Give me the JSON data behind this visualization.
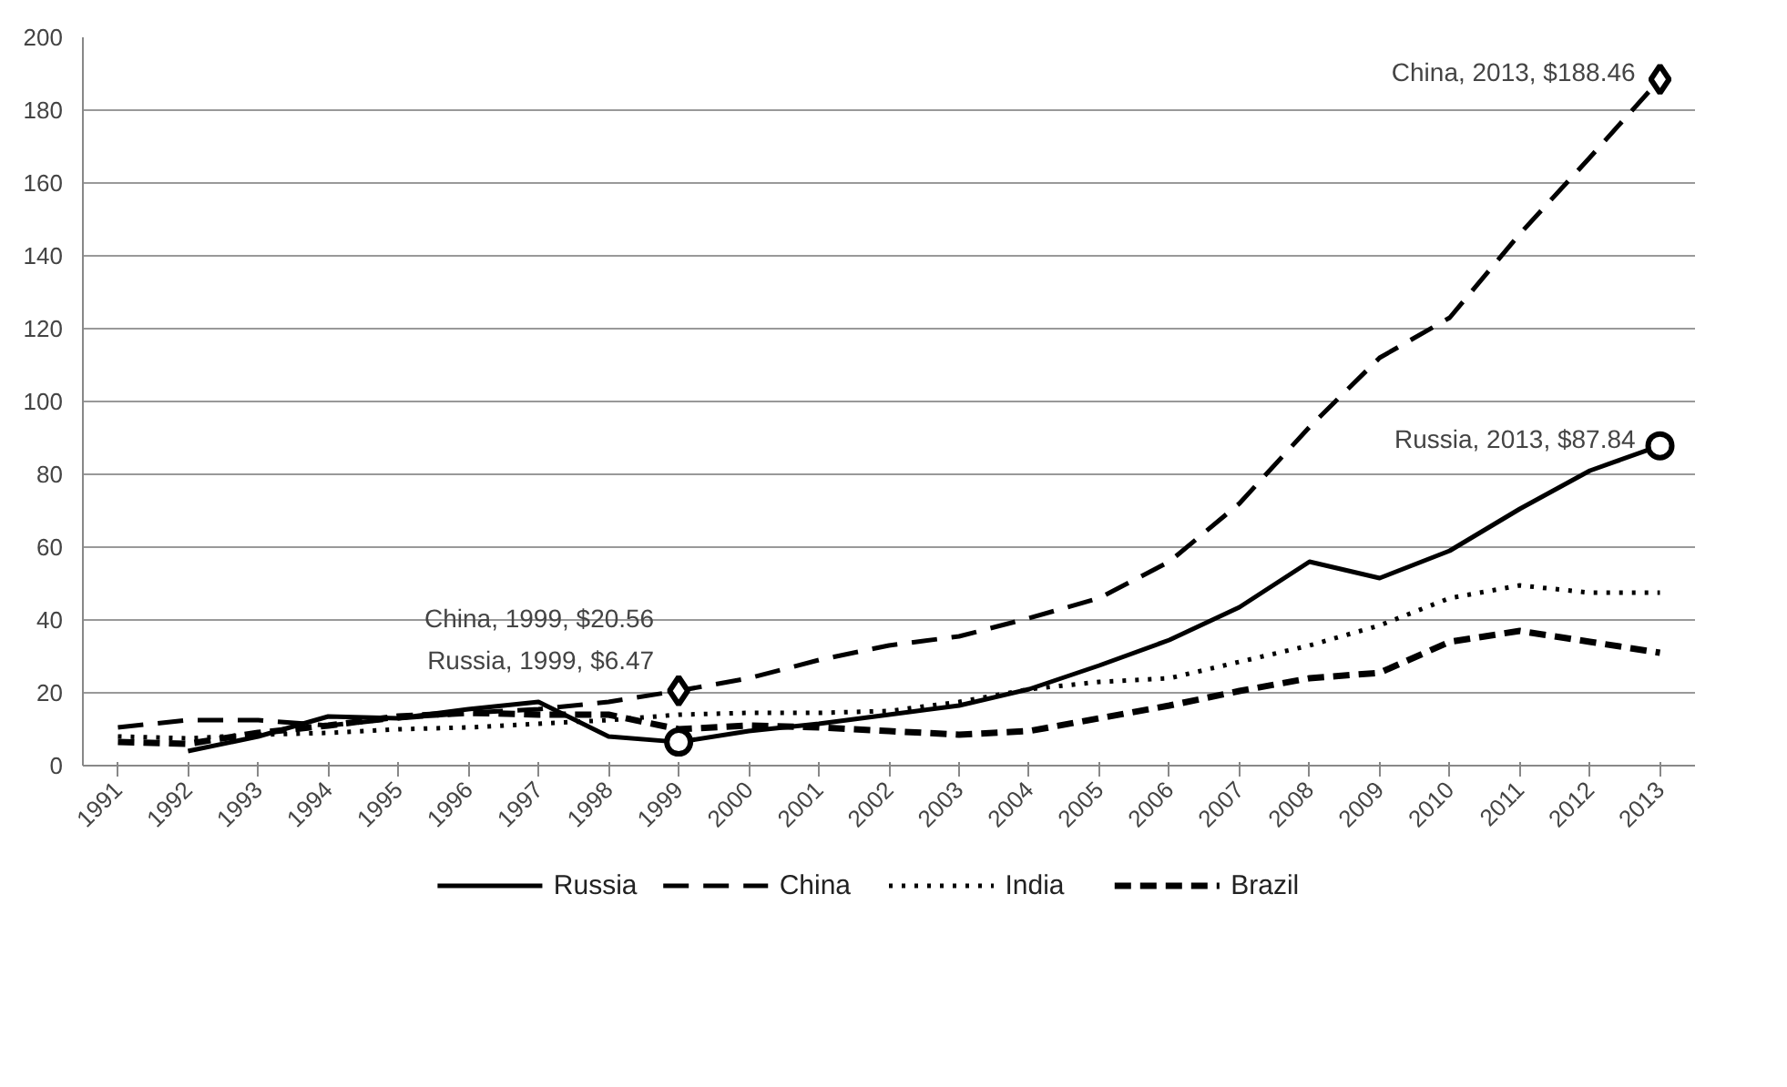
{
  "chart_data": {
    "type": "line",
    "categories": [
      "1991",
      "1992",
      "1993",
      "1994",
      "1995",
      "1996",
      "1997",
      "1998",
      "1999",
      "2000",
      "2001",
      "2002",
      "2003",
      "2004",
      "2005",
      "2006",
      "2007",
      "2008",
      "2009",
      "2010",
      "2011",
      "2012",
      "2013"
    ],
    "series": [
      {
        "name": "Russia",
        "color": "#000000",
        "line_style": "solid",
        "values": [
          null,
          4,
          8,
          13.5,
          13,
          15.5,
          17.5,
          8,
          6.47,
          9.5,
          11.5,
          14,
          16.5,
          21,
          27.5,
          34.5,
          43.5,
          56,
          51.5,
          59,
          70.5,
          81,
          87.84
        ]
      },
      {
        "name": "China",
        "color": "#000000",
        "line_style": "dashed",
        "values": [
          10.5,
          12.5,
          12.5,
          11,
          13,
          14.5,
          15.5,
          17.5,
          20.56,
          24,
          29,
          33,
          35.5,
          40.5,
          46,
          56,
          72,
          93,
          112,
          123,
          146,
          167,
          188.46
        ]
      },
      {
        "name": "India",
        "color": "#000000",
        "line_style": "dotted",
        "values": [
          8,
          7.5,
          8.5,
          9,
          10,
          10.5,
          11.5,
          12.5,
          14,
          14.5,
          14.5,
          15,
          17.5,
          21,
          23,
          24,
          28.5,
          33,
          38.5,
          46,
          49.5,
          47.5,
          47.5
        ]
      },
      {
        "name": "Brazil",
        "color": "#000000",
        "line_style": "dashdot",
        "values": [
          6.5,
          6,
          9,
          11,
          13.5,
          14.5,
          14,
          14,
          10,
          11,
          10.5,
          9.5,
          8.5,
          9.5,
          13,
          16.5,
          20.5,
          24,
          25.5,
          34,
          37,
          34,
          31
        ]
      },
      {
        "type": "scatter",
        "color": "#000000",
        "marker": "circle",
        "values": [
          null,
          null,
          null,
          null,
          null,
          null,
          null,
          null,
          6.47,
          null,
          null,
          null,
          null,
          null,
          null,
          null,
          null,
          null,
          null,
          null,
          null,
          null,
          87.84
        ]
      },
      {
        "type": "scatter",
        "color": "#000000",
        "marker": "diamond",
        "values": [
          null,
          null,
          null,
          null,
          null,
          null,
          null,
          null,
          20.56,
          null,
          null,
          null,
          null,
          null,
          null,
          null,
          null,
          null,
          null,
          null,
          null,
          null,
          188.46
        ]
      }
    ],
    "annotations": [
      {
        "text": "China, 2013, $188.46",
        "x": "2013",
        "y": 188.46
      },
      {
        "text": "Russia, 2013, $87.84",
        "x": "2013",
        "y": 87.84
      },
      {
        "text": "China, 1999, $20.56",
        "x": "1999",
        "y": 20.56
      },
      {
        "text": "Russia, 1999, $6.47",
        "x": "1999",
        "y": 6.47
      }
    ],
    "ylim": [
      0,
      200
    ],
    "yticks": [
      0,
      20,
      40,
      60,
      80,
      100,
      120,
      140,
      160,
      180,
      200
    ],
    "grid": "y",
    "legend": "bottom",
    "marker": "none"
  }
}
